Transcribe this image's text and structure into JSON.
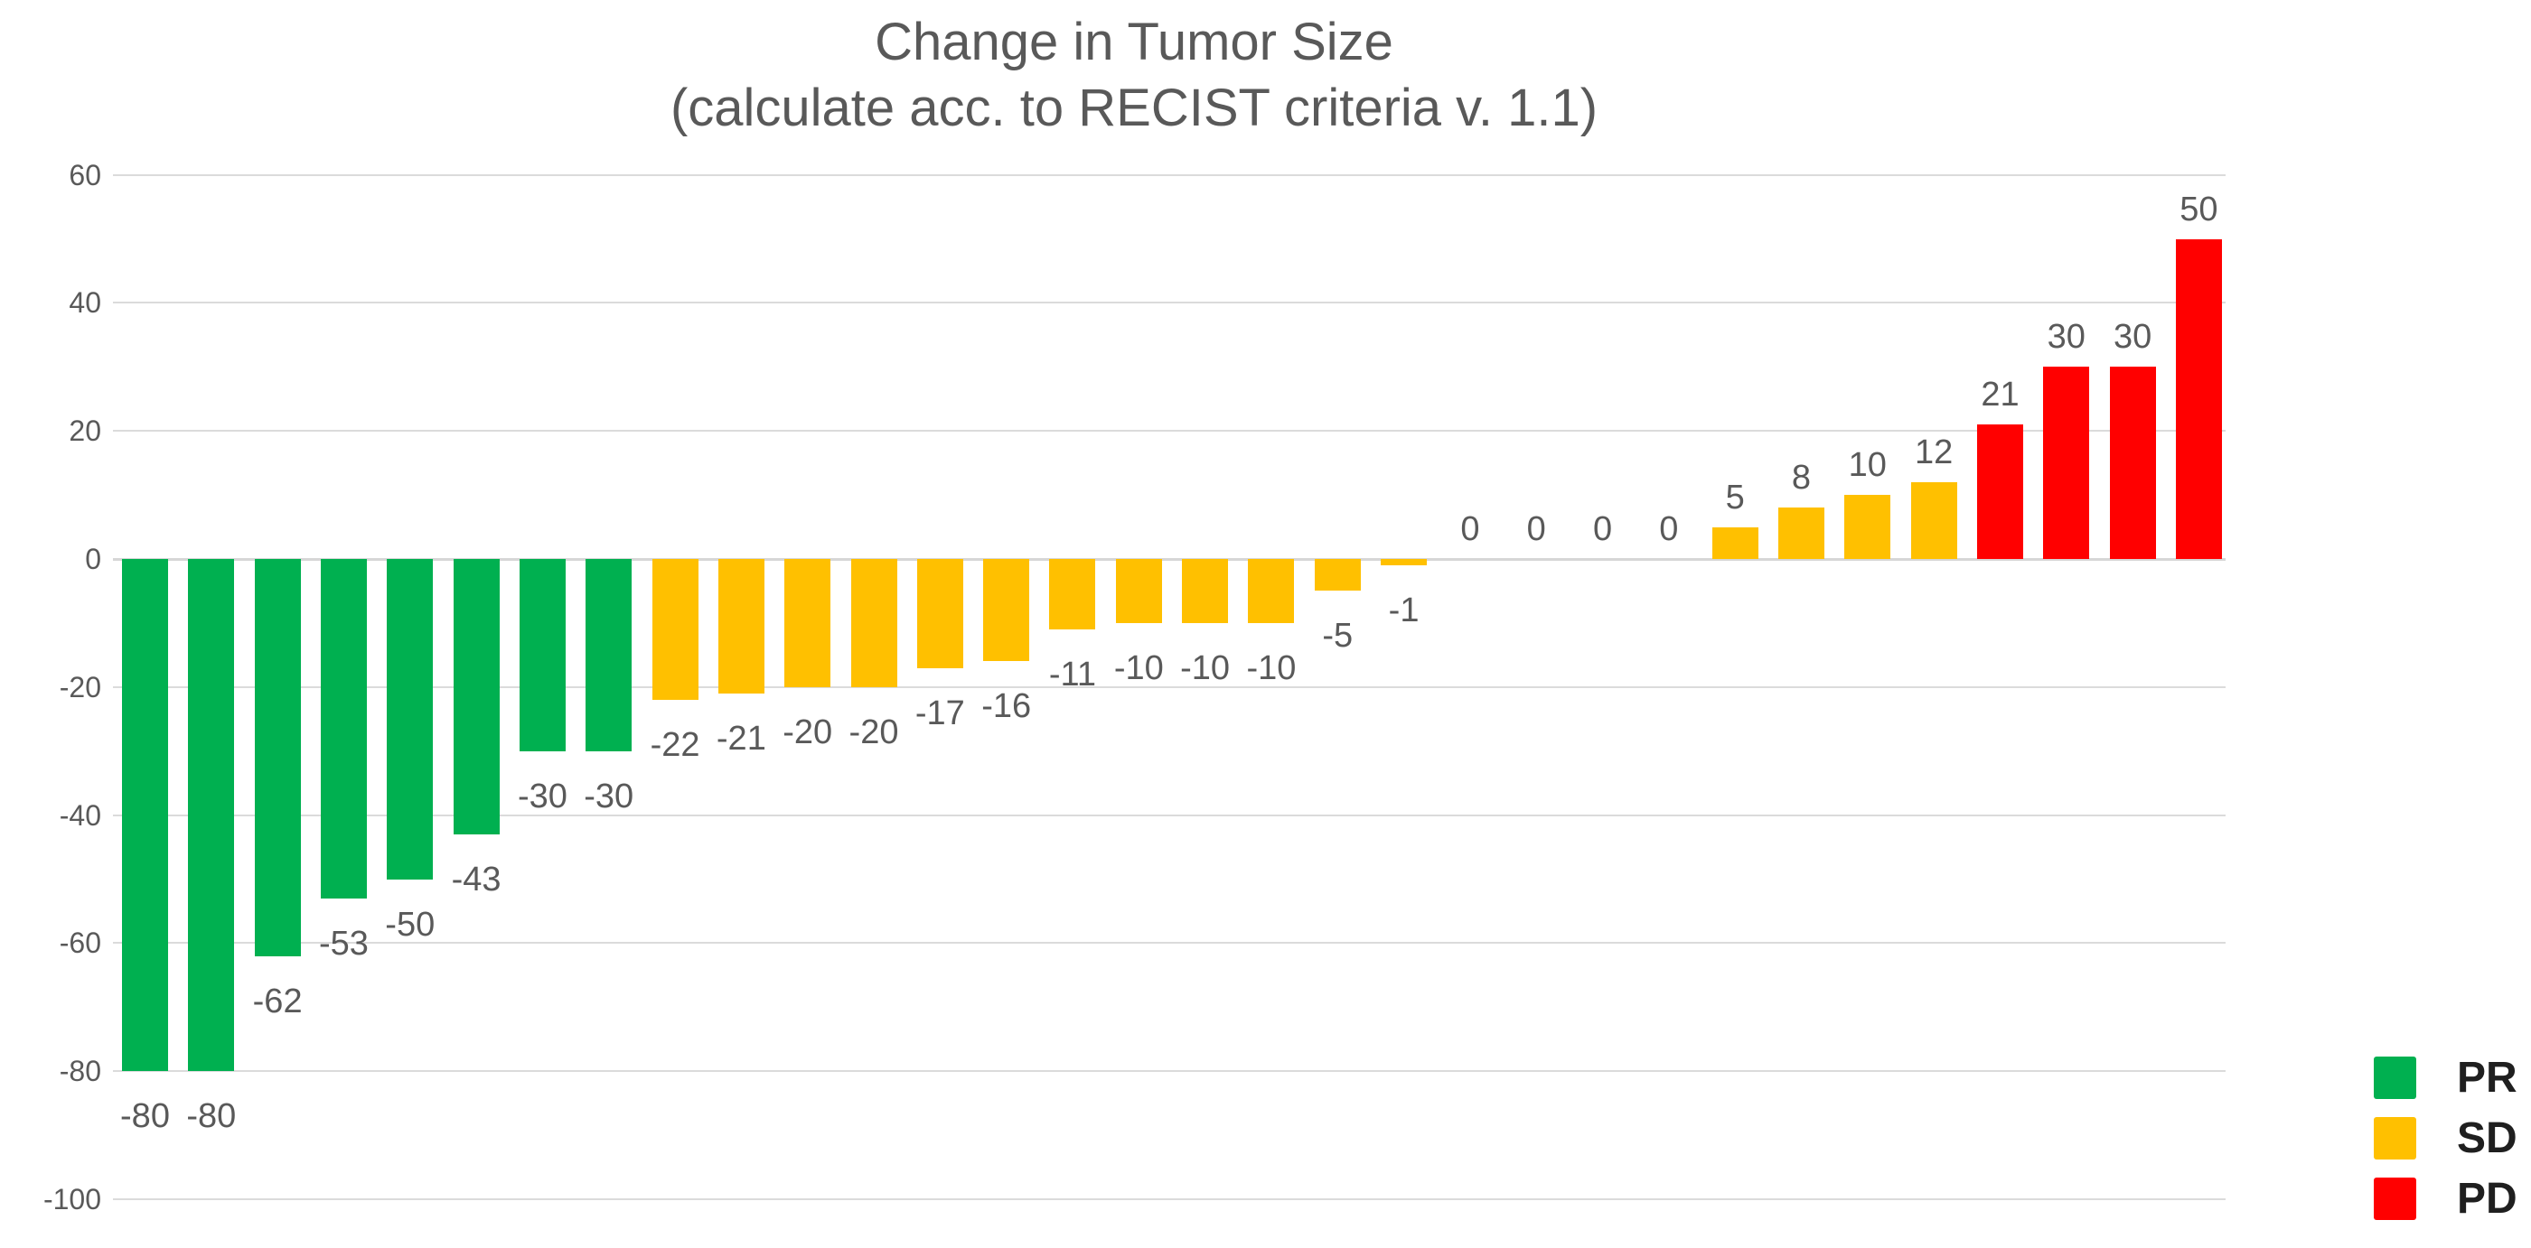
{
  "title": {
    "line1": "Change in Tumor Size",
    "line2": "(calculate acc. to RECIST criteria v. 1.1)"
  },
  "chart_data": {
    "type": "bar",
    "title": "Change in Tumor Size",
    "subtitle": "(calculate acc. to RECIST criteria v. 1.1)",
    "xlabel": "",
    "ylabel": "",
    "ylim": [
      -100,
      60
    ],
    "yticks": [
      60,
      40,
      20,
      0,
      -20,
      -40,
      -60,
      -80,
      -100
    ],
    "grid": true,
    "data_labels": true,
    "legend_position": "bottom-right",
    "series": [
      {
        "name": "PR",
        "color": "#00B050",
        "values": [
          -80,
          -80,
          -62,
          -53,
          -50,
          -43,
          -30,
          -30
        ]
      },
      {
        "name": "SD",
        "color": "#FFC000",
        "values": [
          -22,
          -21,
          -20,
          -20,
          -17,
          -16,
          -11,
          -10,
          -10,
          -10,
          -5,
          -1,
          0,
          0,
          0,
          0,
          5,
          8,
          10,
          12
        ]
      },
      {
        "name": "PD",
        "color": "#FF0000",
        "values": [
          21,
          30,
          30,
          50
        ]
      }
    ]
  },
  "legend": {
    "items": [
      {
        "label": "PR",
        "color": "#00B050"
      },
      {
        "label": "SD",
        "color": "#FFC000"
      },
      {
        "label": "PD",
        "color": "#FF0000"
      }
    ]
  },
  "colors": {
    "background": "#FFFFFF",
    "gridline": "#DBDBDB",
    "zero_line": "#D6D6D6",
    "axis_text": "#595959",
    "data_label_text": "#595959",
    "title_text": "#595959",
    "legend_text": "#1F1F1F"
  }
}
